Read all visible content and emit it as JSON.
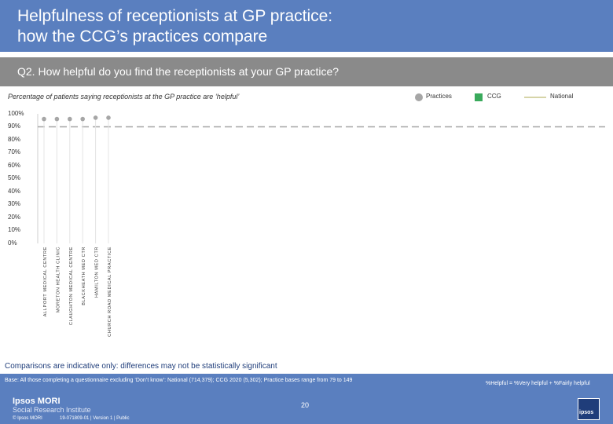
{
  "title": {
    "line1": "Helpfulness of receptionists at GP practice:",
    "line2": "how the CCG’s practices compare"
  },
  "question": "Q2. How helpful do you find the receptionists at your GP practice?",
  "subtitle": "Percentage of patients saying receptionists at the GP practice are ‘helpful’",
  "legend": {
    "practices": "Practices",
    "ccg": "CCG",
    "national": "National"
  },
  "colors": {
    "title_bar": "#5a7fbf",
    "question_bar": "#8a8a8a",
    "practices": "#a6a6a6",
    "ccg": "#3aaa5c",
    "national": "#d6d4a8",
    "dashed": "#a6a6a6"
  },
  "chart_data": {
    "type": "scatter",
    "y_ticks": [
      "0%",
      "10%",
      "20%",
      "30%",
      "40%",
      "50%",
      "60%",
      "70%",
      "80%",
      "90%",
      "100%"
    ],
    "ylim": [
      0,
      100
    ],
    "categories": [
      "ALLPORT MEDICAL CENTRE",
      "MORETON HEALTH CLINIC",
      "CLAUGHTON MEDICAL CENTRE",
      "BLACKHEATH MED CTR",
      "HAMILTON MED CTR",
      "CHURCH ROAD MEDICAL PRACTICE"
    ],
    "series": [
      {
        "name": "Practices",
        "values": [
          96,
          96,
          96,
          96,
          97,
          97
        ]
      }
    ],
    "reference_lines": {
      "ccg": 90,
      "national": 90
    },
    "grid": false
  },
  "footer": {
    "note": "Comparisons are indicative only: differences may not be statistically significant",
    "base": "Base: All those completing a questionnaire excluding ‘Don’t know’: National (714,379); CCG 2020 (5,302); Practice bases range from 79 to 149",
    "definition": "%Helpful = %Very helpful + %Fairly helpful",
    "page": "20",
    "brand_line1": "Ipsos MORI",
    "brand_line2": "Social Research Institute",
    "copyright": "© Ipsos MORI",
    "job": "19-071809-01 | Version 1 | Public",
    "logo_text": "ipsos"
  }
}
